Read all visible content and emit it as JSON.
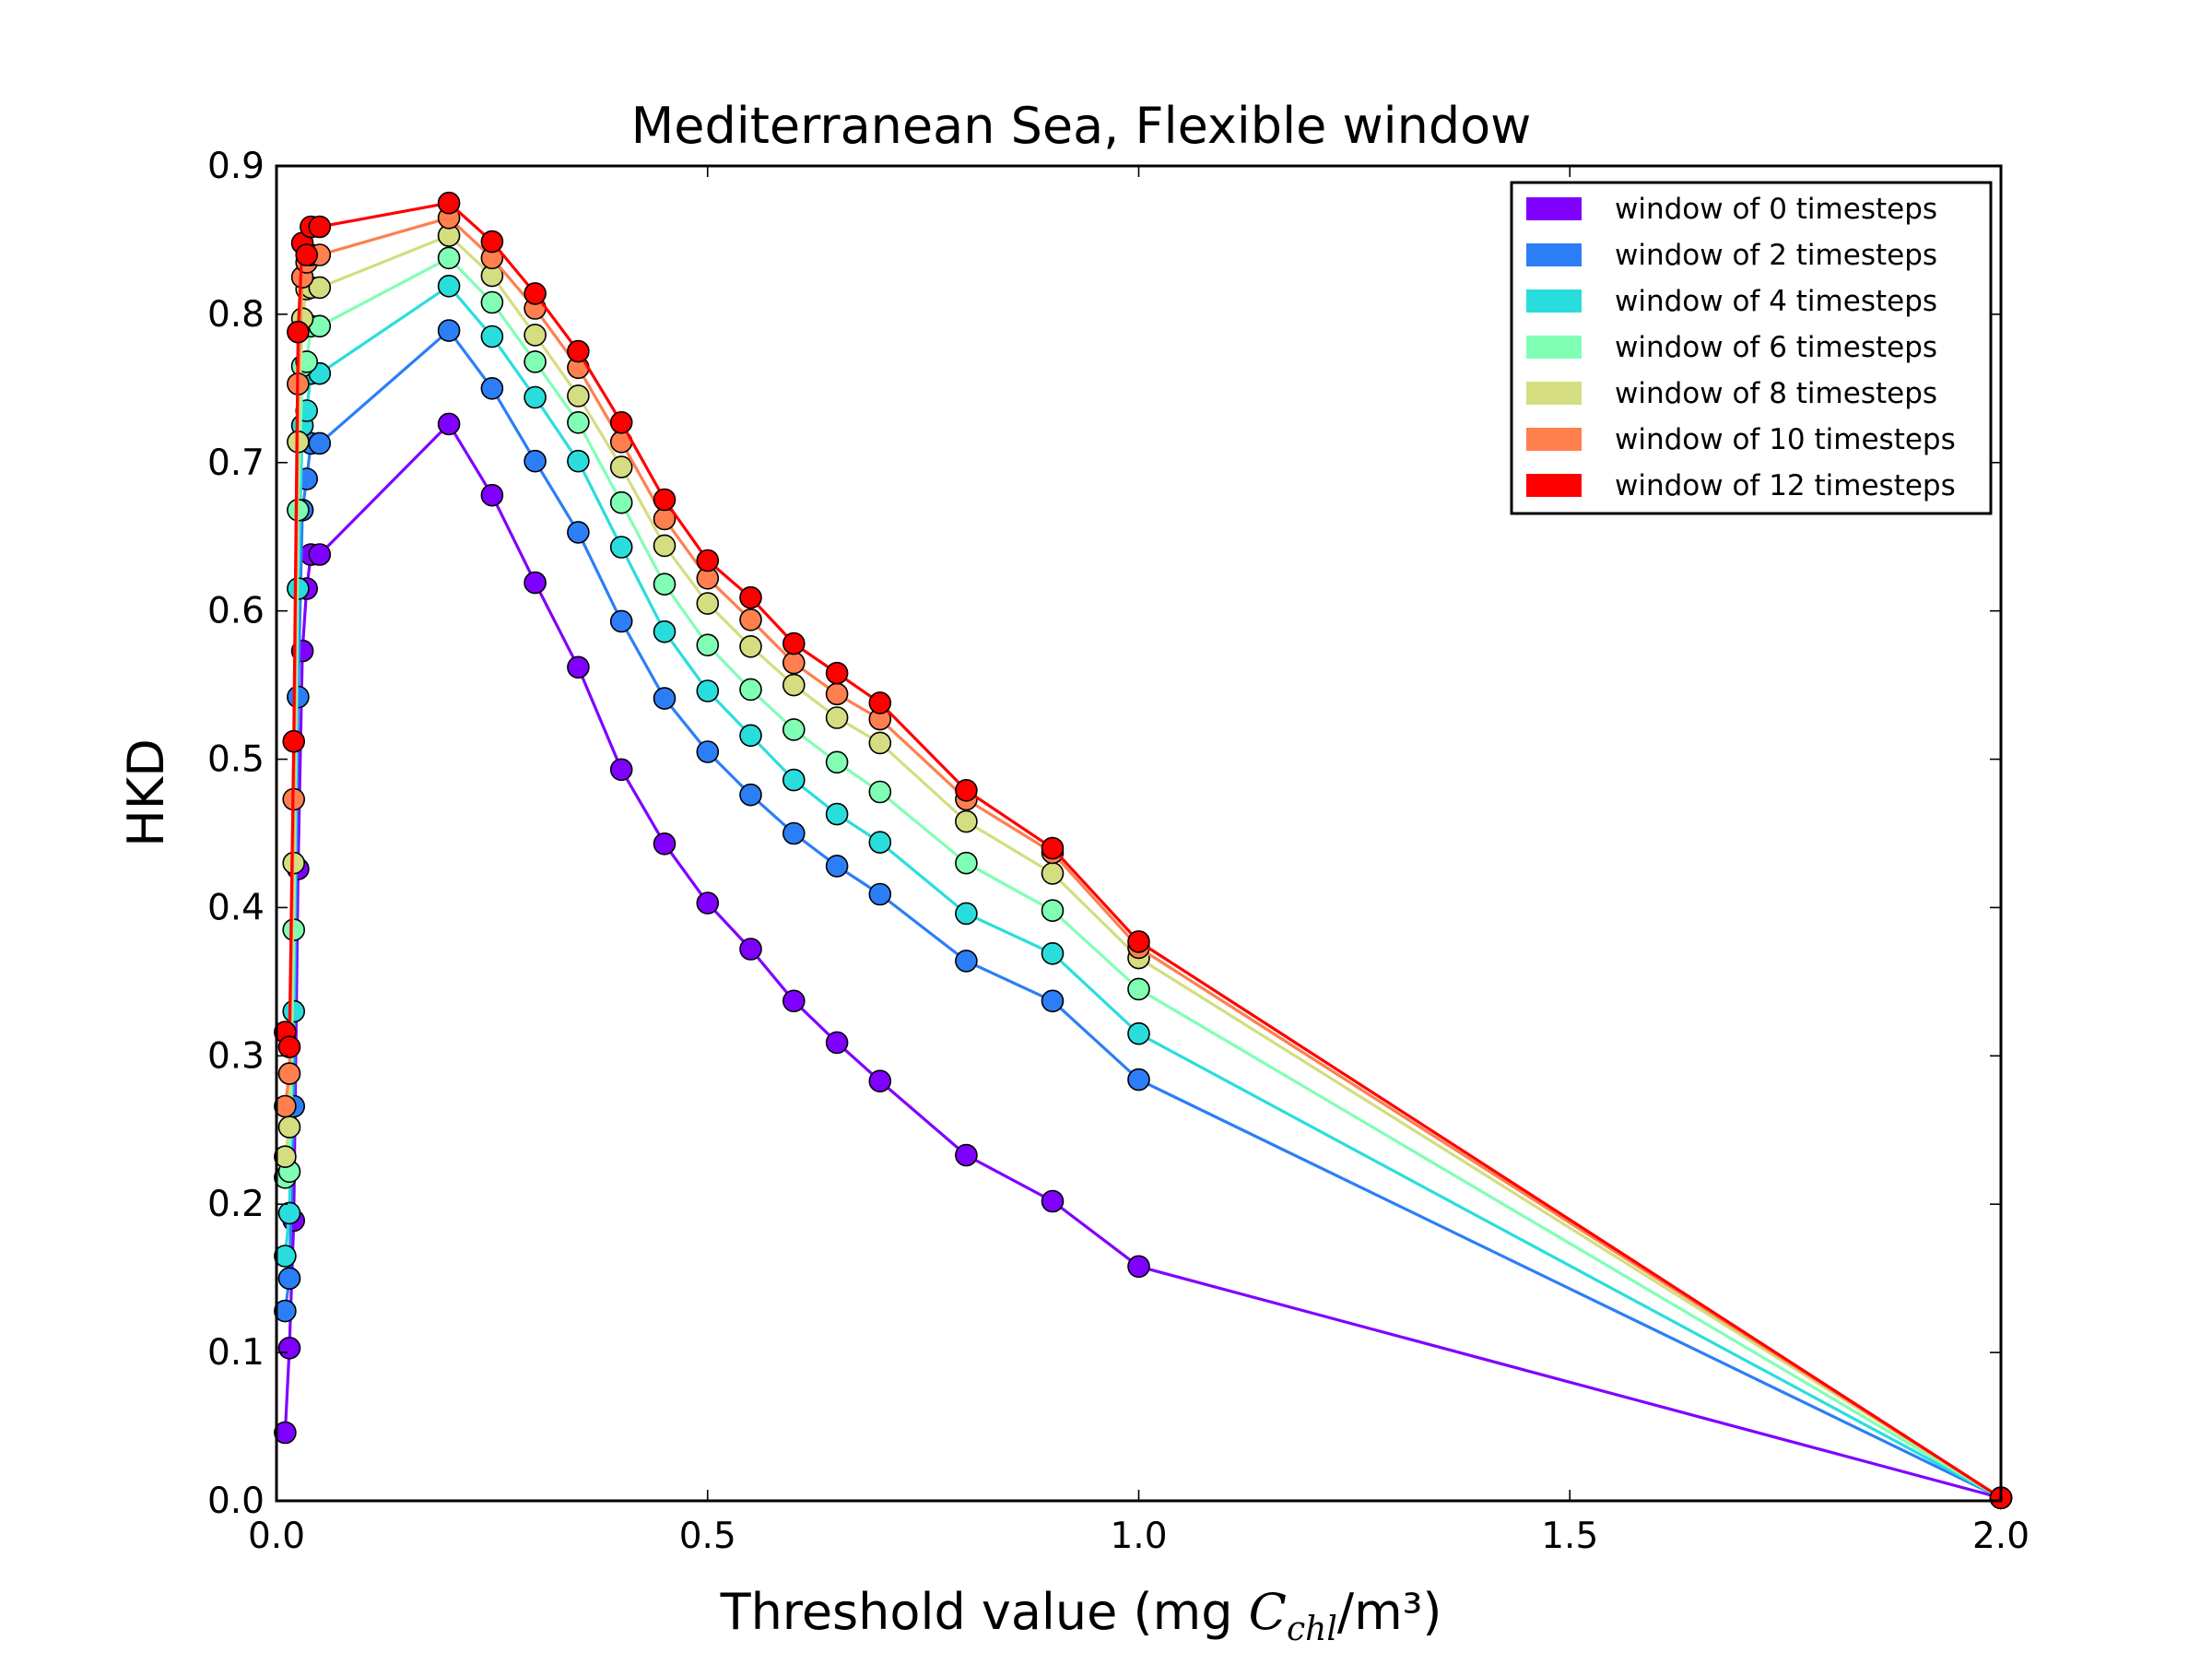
{
  "chart_data": {
    "type": "line",
    "title": "Mediterranean Sea, Flexible window",
    "xlabel": "Threshold value (mg C_chl/m³)",
    "xlabel_parts": {
      "before": "Threshold value (mg ",
      "math_main": "C",
      "math_sub": "chl",
      "after": "/m³)"
    },
    "ylabel": "HKD",
    "xlim": [
      0.0,
      2.0
    ],
    "ylim": [
      0.0,
      0.9
    ],
    "x_ticks": [
      "0.0",
      "0.5",
      "1.0",
      "1.5",
      "2.0"
    ],
    "y_ticks": [
      "0.0",
      "0.1",
      "0.2",
      "0.3",
      "0.4",
      "0.5",
      "0.6",
      "0.7",
      "0.8",
      "0.9"
    ],
    "grid": false,
    "legend_position": "top-right",
    "x": [
      0.01,
      0.015,
      0.02,
      0.025,
      0.03,
      0.035,
      0.04,
      0.05,
      0.2,
      0.25,
      0.3,
      0.35,
      0.4,
      0.45,
      0.5,
      0.55,
      0.6,
      0.65,
      0.7,
      0.8,
      0.9,
      1.0,
      2.0
    ],
    "series": [
      {
        "name": "window of 0 timesteps",
        "color": "#8000ff",
        "values": [
          0.046,
          0.103,
          0.189,
          0.426,
          0.573,
          0.615,
          0.638,
          0.638,
          0.726,
          0.678,
          0.619,
          0.562,
          0.493,
          0.443,
          0.403,
          0.372,
          0.337,
          0.309,
          0.283,
          0.233,
          0.202,
          0.158,
          0.002
        ]
      },
      {
        "name": "window of 2 timesteps",
        "color": "#2c7ef7",
        "values": [
          0.128,
          0.15,
          0.266,
          0.542,
          0.668,
          0.689,
          0.713,
          0.713,
          0.789,
          0.75,
          0.701,
          0.653,
          0.593,
          0.541,
          0.505,
          0.476,
          0.45,
          0.428,
          0.409,
          0.364,
          0.337,
          0.284,
          0.002
        ]
      },
      {
        "name": "window of 4 timesteps",
        "color": "#2adddd",
        "values": [
          0.165,
          0.194,
          0.33,
          0.615,
          0.725,
          0.735,
          0.76,
          0.76,
          0.819,
          0.785,
          0.744,
          0.701,
          0.643,
          0.586,
          0.546,
          0.516,
          0.486,
          0.463,
          0.444,
          0.396,
          0.369,
          0.315,
          0.002
        ]
      },
      {
        "name": "window of 6 timesteps",
        "color": "#80ffb4",
        "values": [
          0.218,
          0.222,
          0.385,
          0.668,
          0.765,
          0.768,
          0.792,
          0.792,
          0.838,
          0.808,
          0.768,
          0.727,
          0.673,
          0.618,
          0.577,
          0.547,
          0.52,
          0.498,
          0.478,
          0.43,
          0.398,
          0.345,
          0.002
        ]
      },
      {
        "name": "window of 8 timesteps",
        "color": "#d4dd80",
        "values": [
          0.232,
          0.252,
          0.43,
          0.714,
          0.797,
          0.817,
          0.818,
          0.818,
          0.853,
          0.826,
          0.786,
          0.745,
          0.697,
          0.644,
          0.605,
          0.576,
          0.55,
          0.528,
          0.511,
          0.458,
          0.423,
          0.366,
          0.002
        ]
      },
      {
        "name": "window of 10 timesteps",
        "color": "#ff7f4e",
        "values": [
          0.266,
          0.288,
          0.473,
          0.753,
          0.825,
          0.835,
          0.84,
          0.84,
          0.865,
          0.838,
          0.804,
          0.764,
          0.714,
          0.662,
          0.622,
          0.594,
          0.565,
          0.544,
          0.527,
          0.473,
          0.437,
          0.373,
          0.002
        ]
      },
      {
        "name": "window of 12 timesteps",
        "color": "#ff0000",
        "values": [
          0.316,
          0.306,
          0.512,
          0.788,
          0.848,
          0.84,
          0.859,
          0.859,
          0.875,
          0.849,
          0.814,
          0.775,
          0.727,
          0.675,
          0.634,
          0.609,
          0.578,
          0.558,
          0.538,
          0.479,
          0.44,
          0.377,
          0.002
        ]
      }
    ]
  }
}
